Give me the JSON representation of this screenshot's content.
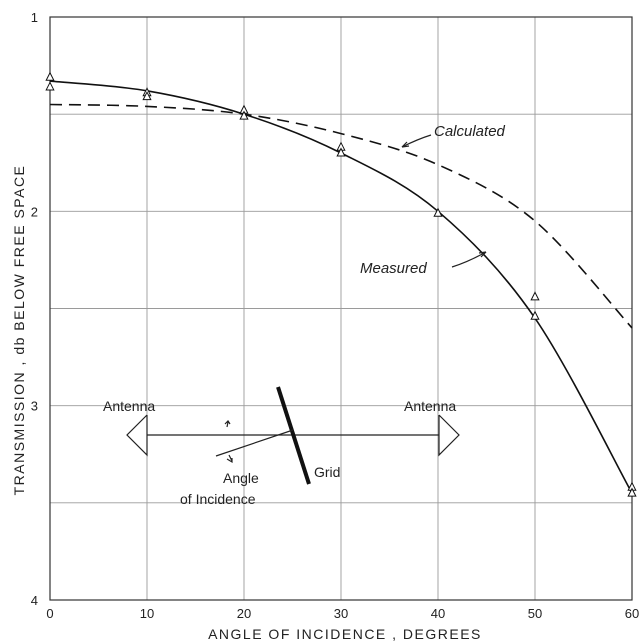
{
  "chart_data": {
    "type": "line",
    "xlabel": "ANGLE OF INCIDENCE , DEGREES",
    "ylabel": "TRANSMISSION , db BELOW FREE SPACE",
    "xlim": [
      0,
      60
    ],
    "ylim": [
      1,
      4
    ],
    "y_inverted": true,
    "grid": true,
    "x_ticks": [
      "0",
      "10",
      "20",
      "30",
      "40",
      "50",
      "60"
    ],
    "y_ticks": [
      "1",
      "2",
      "3",
      "4"
    ],
    "series": [
      {
        "name": "Calculated",
        "style": "dashed",
        "x": [
          0,
          10,
          20,
          30,
          40,
          50,
          60
        ],
        "y": [
          1.45,
          1.46,
          1.5,
          1.6,
          1.76,
          2.05,
          2.6
        ]
      },
      {
        "name": "Measured",
        "style": "solid",
        "x": [
          0,
          10,
          20,
          30,
          40,
          50,
          60
        ],
        "y": [
          1.33,
          1.38,
          1.5,
          1.7,
          2.0,
          2.55,
          3.45
        ]
      }
    ],
    "measured_points": {
      "x": [
        0,
        0,
        10,
        10,
        20,
        20,
        30,
        30,
        40,
        50,
        50,
        60,
        60
      ],
      "y": [
        1.31,
        1.36,
        1.39,
        1.41,
        1.48,
        1.51,
        1.67,
        1.7,
        2.01,
        2.44,
        2.54,
        3.42,
        3.45
      ]
    },
    "annotations": {
      "calculated": "Calculated",
      "measured": "Measured",
      "antenna_left": "Antenna",
      "antenna_right": "Antenna",
      "grid": "Grid",
      "angle_line1": "Angle",
      "angle_line2": "of Incidence"
    }
  }
}
